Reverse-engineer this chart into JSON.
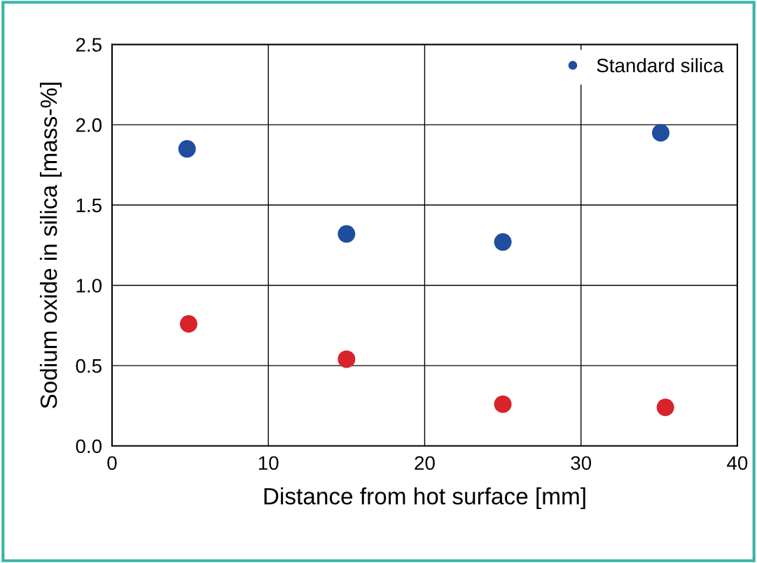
{
  "chart_data": {
    "type": "scatter",
    "xlabel": "Distance from hot surface [mm]",
    "ylabel": "Sodium oxide in silica [mass-%]",
    "xlim": [
      0,
      40
    ],
    "xticks": [
      0,
      10,
      20,
      30,
      40
    ],
    "ylim": [
      0,
      2.5
    ],
    "yticks": [
      {
        "value": 0,
        "label": "0.0"
      },
      {
        "value": 0.5,
        "label": "0.5"
      },
      {
        "value": 1,
        "label": "1.0"
      },
      {
        "value": 1.5,
        "label": "1.5"
      },
      {
        "value": 2,
        "label": "2.0"
      },
      {
        "value": 2.5,
        "label": "2.5"
      }
    ],
    "grid": true,
    "legend": "top right",
    "marker": "circle",
    "series": [
      {
        "name": "Standard silica",
        "color": "#1f4e9e",
        "x": [
          4.8,
          15.0,
          25.0,
          35.1
        ],
        "values": [
          1.85,
          1.32,
          1.27,
          1.95
        ]
      },
      {
        "color": "#d8232a",
        "x": [
          4.9,
          15.0,
          25.0,
          35.4
        ],
        "values": [
          0.76,
          0.54,
          0.26,
          0.24
        ]
      }
    ]
  }
}
